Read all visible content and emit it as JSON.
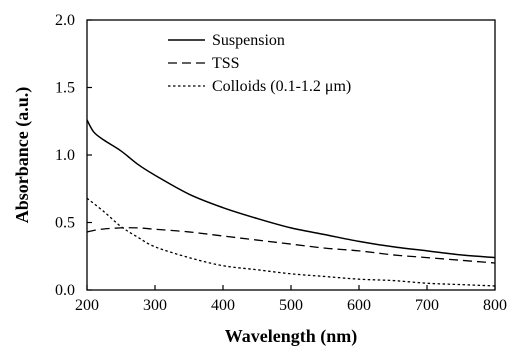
{
  "chart_data": {
    "type": "line",
    "xlabel": "Wavelength (nm)",
    "ylabel": "Absorbance (a.u.)",
    "xlim": [
      200,
      800
    ],
    "ylim": [
      0,
      2.0
    ],
    "x_ticks": [
      "200",
      "300",
      "400",
      "500",
      "600",
      "700",
      "800"
    ],
    "y_ticks": [
      "0.0",
      "0.5",
      "1.0",
      "1.5",
      "2.0"
    ],
    "grid": false,
    "legend_position": "top-center",
    "series": [
      {
        "name": "Suspension",
        "line_style": "solid",
        "x": [
          200,
          210,
          225,
          250,
          275,
          300,
          350,
          400,
          450,
          500,
          550,
          600,
          650,
          700,
          750,
          800
        ],
        "y": [
          1.26,
          1.17,
          1.11,
          1.03,
          0.93,
          0.85,
          0.71,
          0.61,
          0.53,
          0.46,
          0.41,
          0.36,
          0.32,
          0.29,
          0.26,
          0.24
        ]
      },
      {
        "name": "TSS",
        "line_style": "dashed",
        "x": [
          200,
          220,
          250,
          275,
          300,
          350,
          400,
          450,
          500,
          550,
          600,
          650,
          700,
          750,
          800
        ],
        "y": [
          0.43,
          0.45,
          0.46,
          0.46,
          0.45,
          0.43,
          0.4,
          0.37,
          0.34,
          0.31,
          0.29,
          0.26,
          0.24,
          0.22,
          0.2
        ]
      },
      {
        "name": "Colloids (0.1-1.2 μm)",
        "line_style": "dotted",
        "x": [
          200,
          225,
          250,
          275,
          300,
          350,
          400,
          450,
          500,
          550,
          600,
          650,
          700,
          750,
          800
        ],
        "y": [
          0.68,
          0.58,
          0.47,
          0.39,
          0.32,
          0.24,
          0.18,
          0.15,
          0.12,
          0.1,
          0.08,
          0.07,
          0.05,
          0.04,
          0.03
        ]
      }
    ]
  }
}
